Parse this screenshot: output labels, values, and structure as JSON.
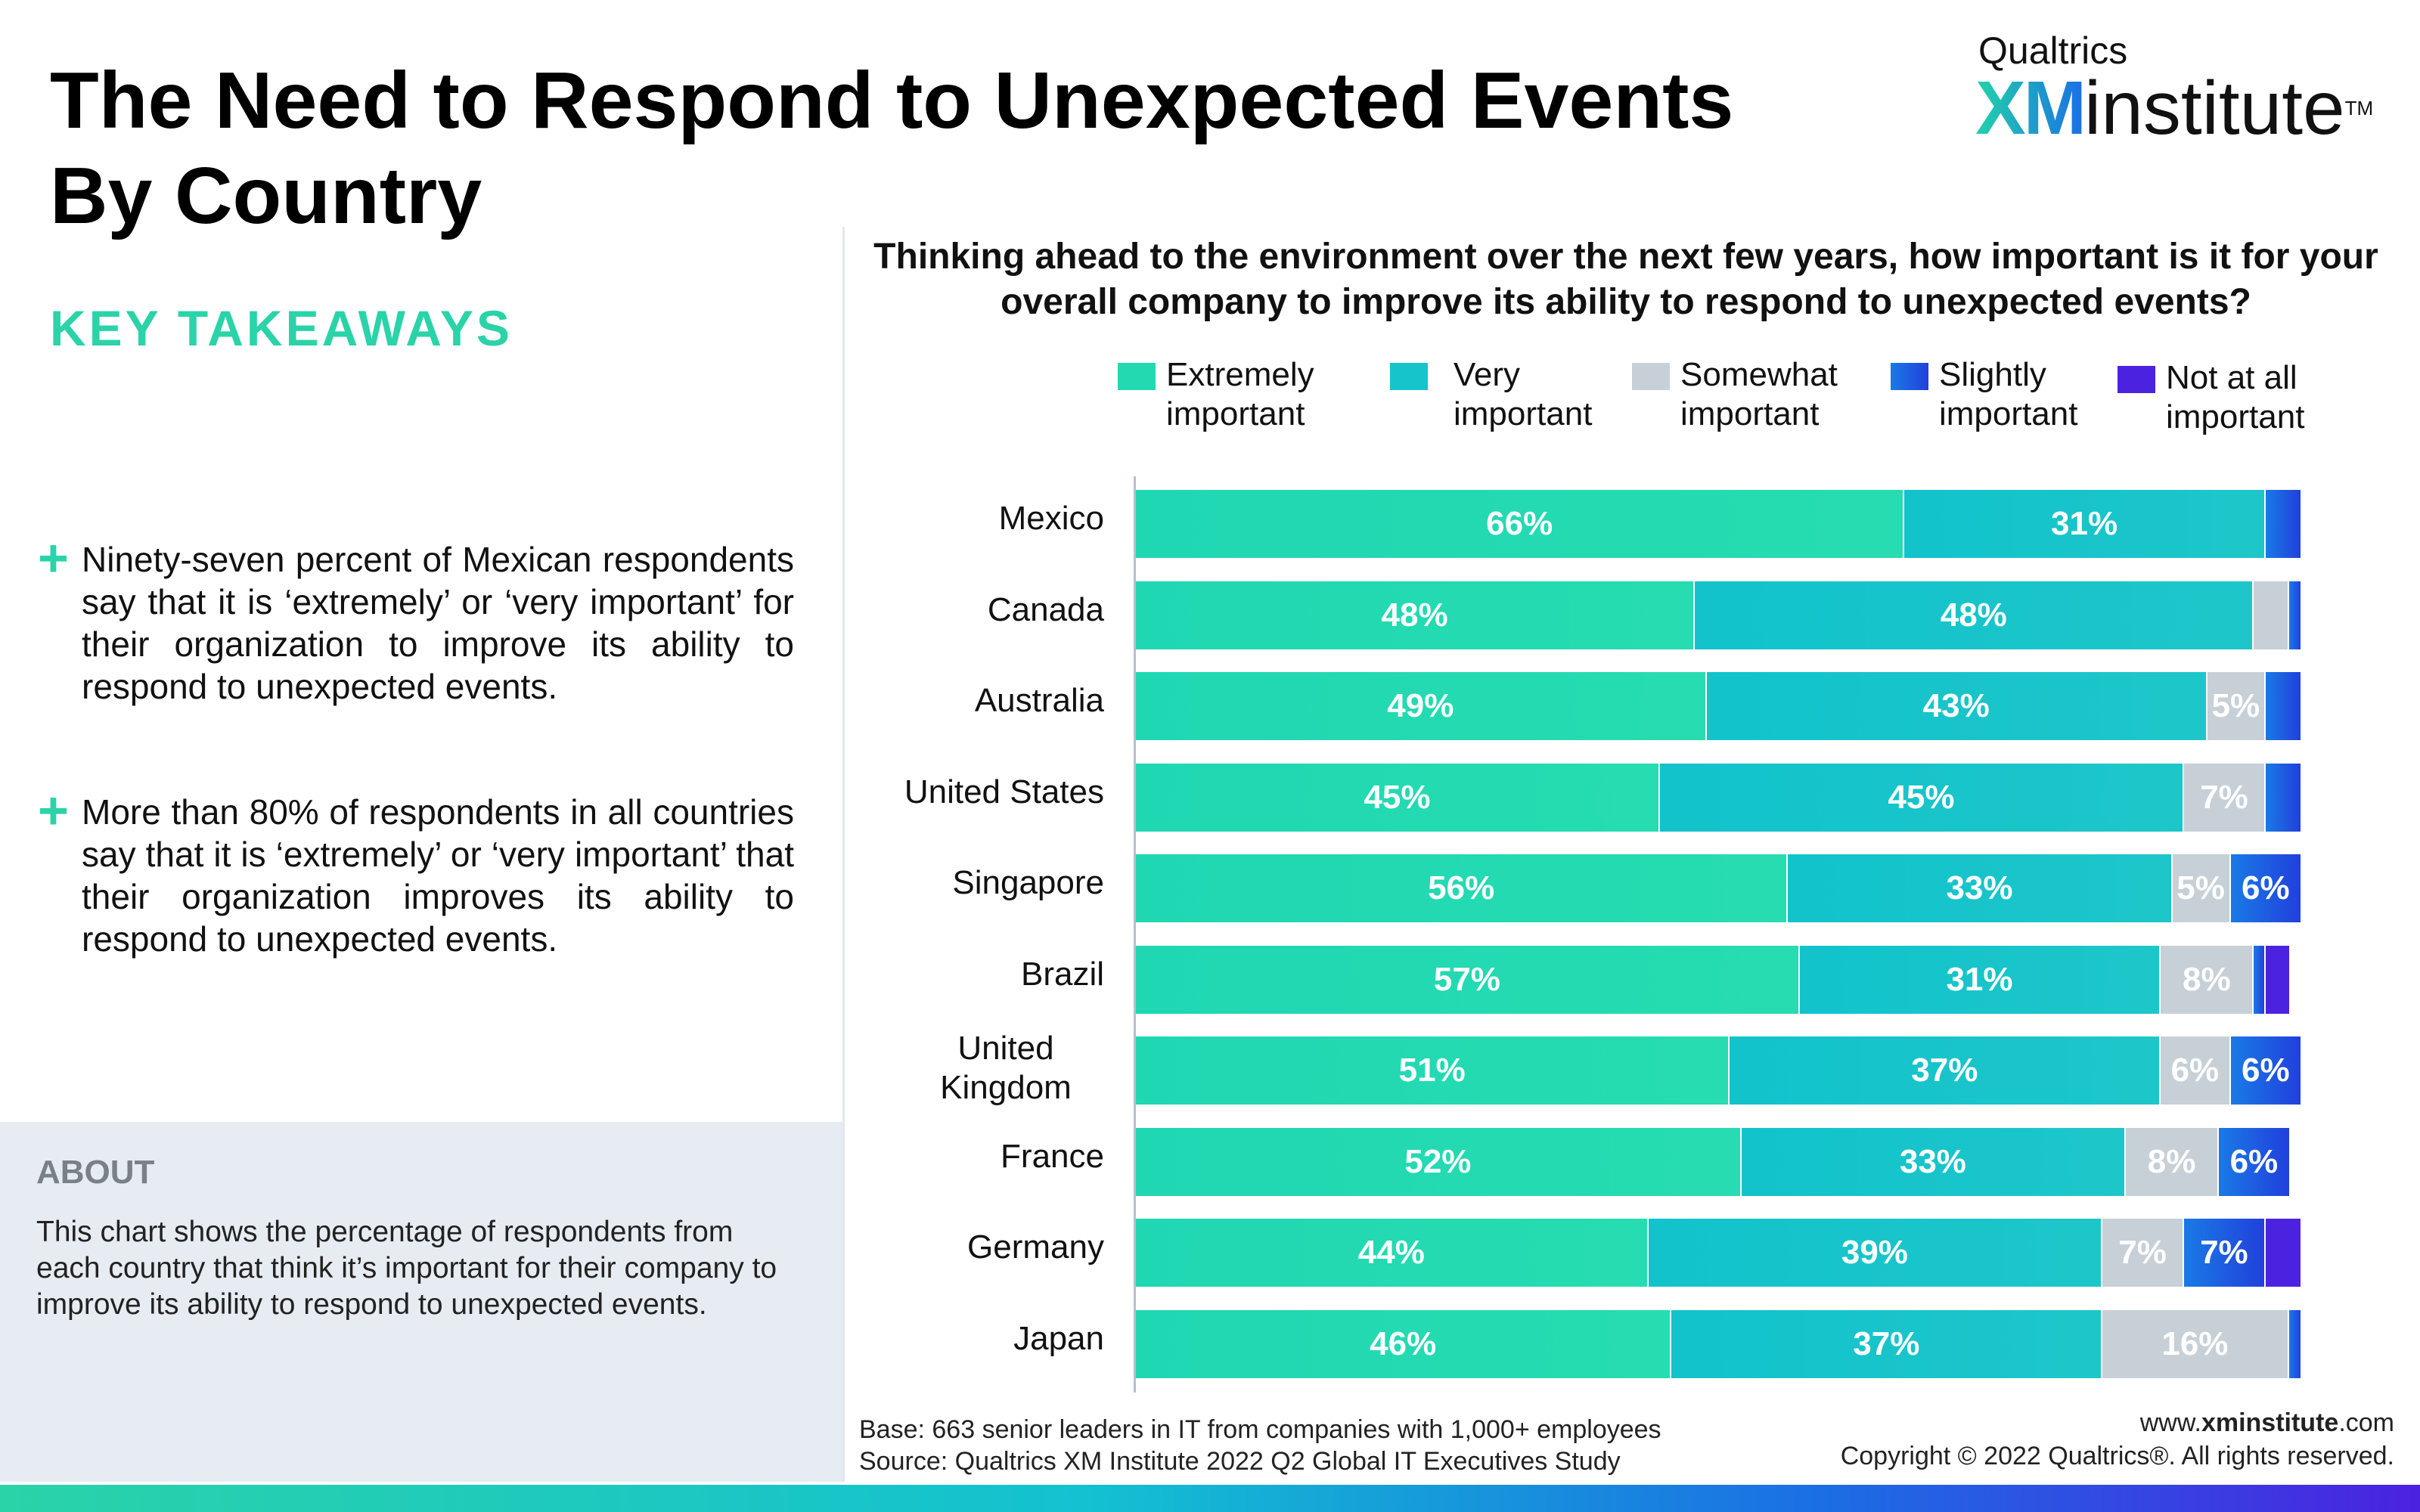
{
  "title": "The Need to Respond to Unexpected Events By Country",
  "logo": {
    "brand": "Qualtrics",
    "xm": "XM",
    "institute": "institute",
    "tm": "TM"
  },
  "takeaways": {
    "heading": "KEY TAKEAWAYS",
    "items": [
      "Ninety-seven percent of Mexican respondents say that it is ‘extremely’ or ‘very important’ for their organization to improve its ability to respond to unexpected events.",
      "More than 80% of respondents in all countries say that it is ‘extremely’ or ‘very important’ that their organization improves its ability to respond to unexpected events."
    ]
  },
  "about": {
    "heading": "ABOUT",
    "text": "This chart shows the percentage of respondents from each country that think it’s important for their company to improve its ability to respond to unexpected events."
  },
  "colors": {
    "extremely": "#22d9b1",
    "very": "#16c4cb",
    "somewhat": "#c7d0d7",
    "slightly": "#1d5fe3",
    "not_at_all": "#4b22e0"
  },
  "chart_data": {
    "type": "bar",
    "orientation": "horizontal",
    "stacked": true,
    "title": "Thinking ahead to the environment over the next few years, how important is it for your overall company to improve its ability to respond to unexpected events?",
    "legend_position": "top",
    "categories": [
      "Mexico",
      "Canada",
      "Australia",
      "United States",
      "Singapore",
      "Brazil",
      "United Kingdom",
      "France",
      "Germany",
      "Japan"
    ],
    "series": [
      {
        "name": "Extremely important",
        "values": [
          66,
          48,
          49,
          45,
          56,
          57,
          51,
          52,
          44,
          46
        ],
        "labels": [
          "66%",
          "48%",
          "49%",
          "45%",
          "56%",
          "57%",
          "51%",
          "52%",
          "44%",
          "46%"
        ]
      },
      {
        "name": "Very important",
        "values": [
          31,
          48,
          43,
          45,
          33,
          31,
          37,
          33,
          39,
          37
        ],
        "labels": [
          "31%",
          "48%",
          "43%",
          "45%",
          "33%",
          "31%",
          "37%",
          "33%",
          "39%",
          "37%"
        ]
      },
      {
        "name": "Somewhat important",
        "values": [
          0,
          3,
          5,
          7,
          5,
          8,
          6,
          8,
          7,
          16
        ],
        "labels": [
          "",
          "",
          "5%",
          "7%",
          "5%",
          "8%",
          "6%",
          "8%",
          "7%",
          "16%"
        ]
      },
      {
        "name": "Slightly important",
        "values": [
          3,
          1,
          3,
          3,
          6,
          1,
          6,
          6,
          7,
          1
        ],
        "labels": [
          "",
          "",
          "",
          "",
          "6%",
          "",
          "6%",
          "6%",
          "7%",
          ""
        ]
      },
      {
        "name": "Not at all important",
        "values": [
          0,
          0,
          0,
          0,
          0,
          2,
          0,
          0,
          3,
          0
        ],
        "labels": [
          "",
          "",
          "",
          "",
          "",
          "",
          "",
          "",
          "",
          ""
        ]
      }
    ],
    "xlim": [
      0,
      100
    ]
  },
  "footer": {
    "base": "Base: 663 senior leaders in IT from companies with 1,000+ employees",
    "source": "Source: Qualtrics XM Institute 2022 Q2 Global IT Executives Study",
    "website_prefix": "www.",
    "website_bold": "xminstitute",
    "website_suffix": ".com",
    "copyright": "Copyright © 2022 Qualtrics®. All rights reserved."
  }
}
